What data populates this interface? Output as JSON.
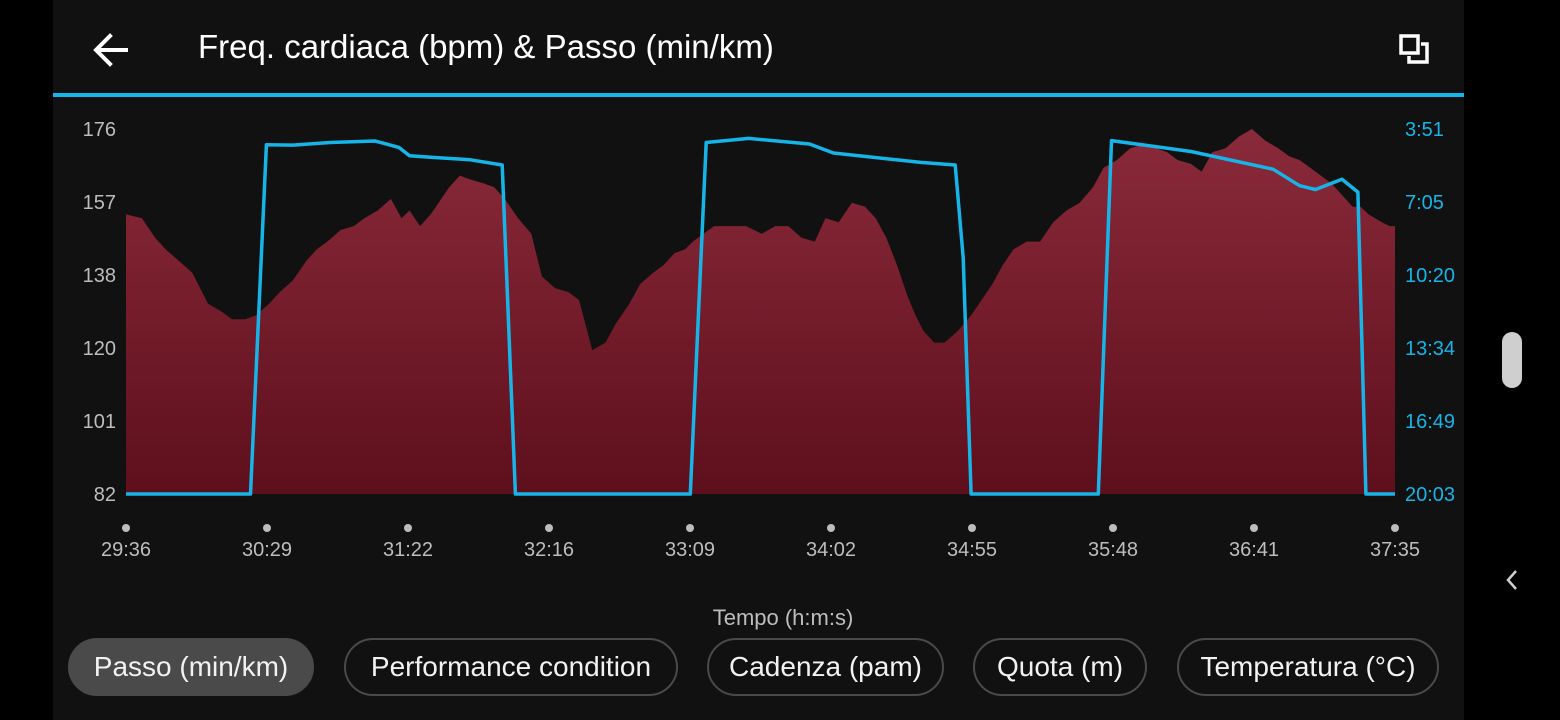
{
  "header": {
    "title": "Freq. cardiaca (bpm) & Passo (min/km)",
    "back_icon": "arrow-left-icon",
    "fullscreen_icon": "fullscreen-toggle-icon"
  },
  "colors": {
    "accent": "#17b4e8",
    "area_top": "#8a2a3a",
    "area_bottom": "#5e0f1c",
    "background": "#111111"
  },
  "chart_data": {
    "type": "area",
    "title": "Freq. cardiaca (bpm) & Passo (min/km)",
    "xlabel": "Tempo (h:m:s)",
    "x_ticks": [
      "29:36",
      "30:29",
      "31:22",
      "32:16",
      "33:09",
      "34:02",
      "34:55",
      "35:48",
      "36:41",
      "37:35"
    ],
    "y_left": {
      "label": "",
      "ticks": [
        "82",
        "101",
        "120",
        "138",
        "157",
        "176"
      ],
      "range": [
        82,
        176
      ]
    },
    "y_right": {
      "label": "",
      "ticks": [
        "3:51",
        "7:05",
        "10:20",
        "13:34",
        "16:49",
        "20:03"
      ],
      "range_seconds": [
        231,
        1203
      ],
      "inverted": true
    },
    "x_range_seconds": [
      1776,
      2255
    ],
    "series": [
      {
        "name": "Freq. cardiaca (bpm)",
        "axis": "left",
        "style": "area",
        "x_seconds": [
          1776,
          1782,
          1787,
          1791,
          1796,
          1801,
          1807,
          1812,
          1816,
          1821,
          1825,
          1830,
          1834,
          1839,
          1844,
          1848,
          1852,
          1857,
          1862,
          1866,
          1871,
          1876,
          1880,
          1883,
          1887,
          1891,
          1894,
          1898,
          1902,
          1906,
          1911,
          1915,
          1919,
          1924,
          1929,
          1933,
          1938,
          1943,
          1947,
          1952,
          1957,
          1961,
          1966,
          1970,
          1975,
          1979,
          1983,
          1987,
          1990,
          1994,
          1998,
          2001,
          2005,
          2010,
          2016,
          2021,
          2026,
          2031,
          2036,
          2040,
          2045,
          2050,
          2055,
          2059,
          2063,
          2067,
          2071,
          2074,
          2077,
          2081,
          2085,
          2090,
          2095,
          2099,
          2103,
          2107,
          2111,
          2116,
          2121,
          2126,
          2131,
          2136,
          2141,
          2145,
          2150,
          2155,
          2160,
          2165,
          2169,
          2173,
          2178,
          2182,
          2186,
          2191,
          2196,
          2201,
          2206,
          2211,
          2215,
          2219,
          2223,
          2227,
          2231,
          2235,
          2239,
          2242,
          2245,
          2250,
          2253,
          2255
        ],
        "values": [
          154,
          153,
          148,
          145,
          142,
          139,
          131,
          129,
          127,
          127,
          128,
          131,
          134,
          137,
          142,
          145,
          147,
          150,
          151,
          153,
          155,
          158,
          153,
          155,
          151,
          154,
          157,
          161,
          164,
          163,
          162,
          161,
          158,
          153,
          149,
          138,
          135,
          134,
          132,
          119,
          121,
          126,
          131,
          136,
          139,
          141,
          144,
          145,
          147,
          149,
          151,
          151,
          151,
          151,
          149,
          151,
          151,
          148,
          147,
          153,
          152,
          157,
          156,
          153,
          148,
          141,
          133,
          128,
          124,
          121,
          121,
          124,
          128,
          132,
          136,
          141,
          145,
          147,
          147,
          152,
          155,
          157,
          161,
          166,
          168,
          171,
          172,
          171,
          170,
          168,
          167,
          165,
          170,
          171,
          174,
          176,
          173,
          171,
          169,
          168,
          166,
          164,
          162,
          159,
          156,
          156,
          154,
          152,
          151,
          151
        ]
      },
      {
        "name": "Passo (min/km)",
        "axis": "right",
        "style": "line",
        "points": [
          [
            "29:36",
            "20:03"
          ],
          [
            "30:23",
            "20:03"
          ],
          [
            "30:29",
            "4:33"
          ],
          [
            "30:39",
            "4:34"
          ],
          [
            "30:53",
            "4:27"
          ],
          [
            "31:10",
            "4:23"
          ],
          [
            "31:19",
            "4:40"
          ],
          [
            "31:23",
            "5:02"
          ],
          [
            "31:31",
            "5:06"
          ],
          [
            "31:46",
            "5:13"
          ],
          [
            "31:58",
            "5:27"
          ],
          [
            "32:03",
            "20:03"
          ],
          [
            "33:09",
            "20:03"
          ],
          [
            "33:15",
            "4:27"
          ],
          [
            "33:31",
            "4:16"
          ],
          [
            "33:54",
            "4:31"
          ],
          [
            "34:03",
            "4:55"
          ],
          [
            "34:36",
            "5:20"
          ],
          [
            "34:49",
            "5:27"
          ],
          [
            "34:52",
            "9:34"
          ],
          [
            "34:55",
            "20:03"
          ],
          [
            "35:43",
            "20:03"
          ],
          [
            "35:48",
            "4:22"
          ],
          [
            "36:18",
            "4:51"
          ],
          [
            "36:49",
            "5:38"
          ],
          [
            "36:59",
            "6:22"
          ],
          [
            "37:05",
            "6:32"
          ],
          [
            "37:15",
            "6:05"
          ],
          [
            "37:21",
            "6:39"
          ],
          [
            "37:24",
            "20:03"
          ],
          [
            "37:35",
            "20:03"
          ]
        ]
      }
    ],
    "grid": false,
    "legend": "none"
  },
  "x_axis_label": "Tempo (h:m:s)",
  "chips": [
    {
      "label": "Passo (min/km)",
      "selected": true
    },
    {
      "label": "Performance condition",
      "selected": false
    },
    {
      "label": "Cadenza (pam)",
      "selected": false
    },
    {
      "label": "Quota (m)",
      "selected": false
    },
    {
      "label": "Temperatura (°C)",
      "selected": false
    }
  ]
}
